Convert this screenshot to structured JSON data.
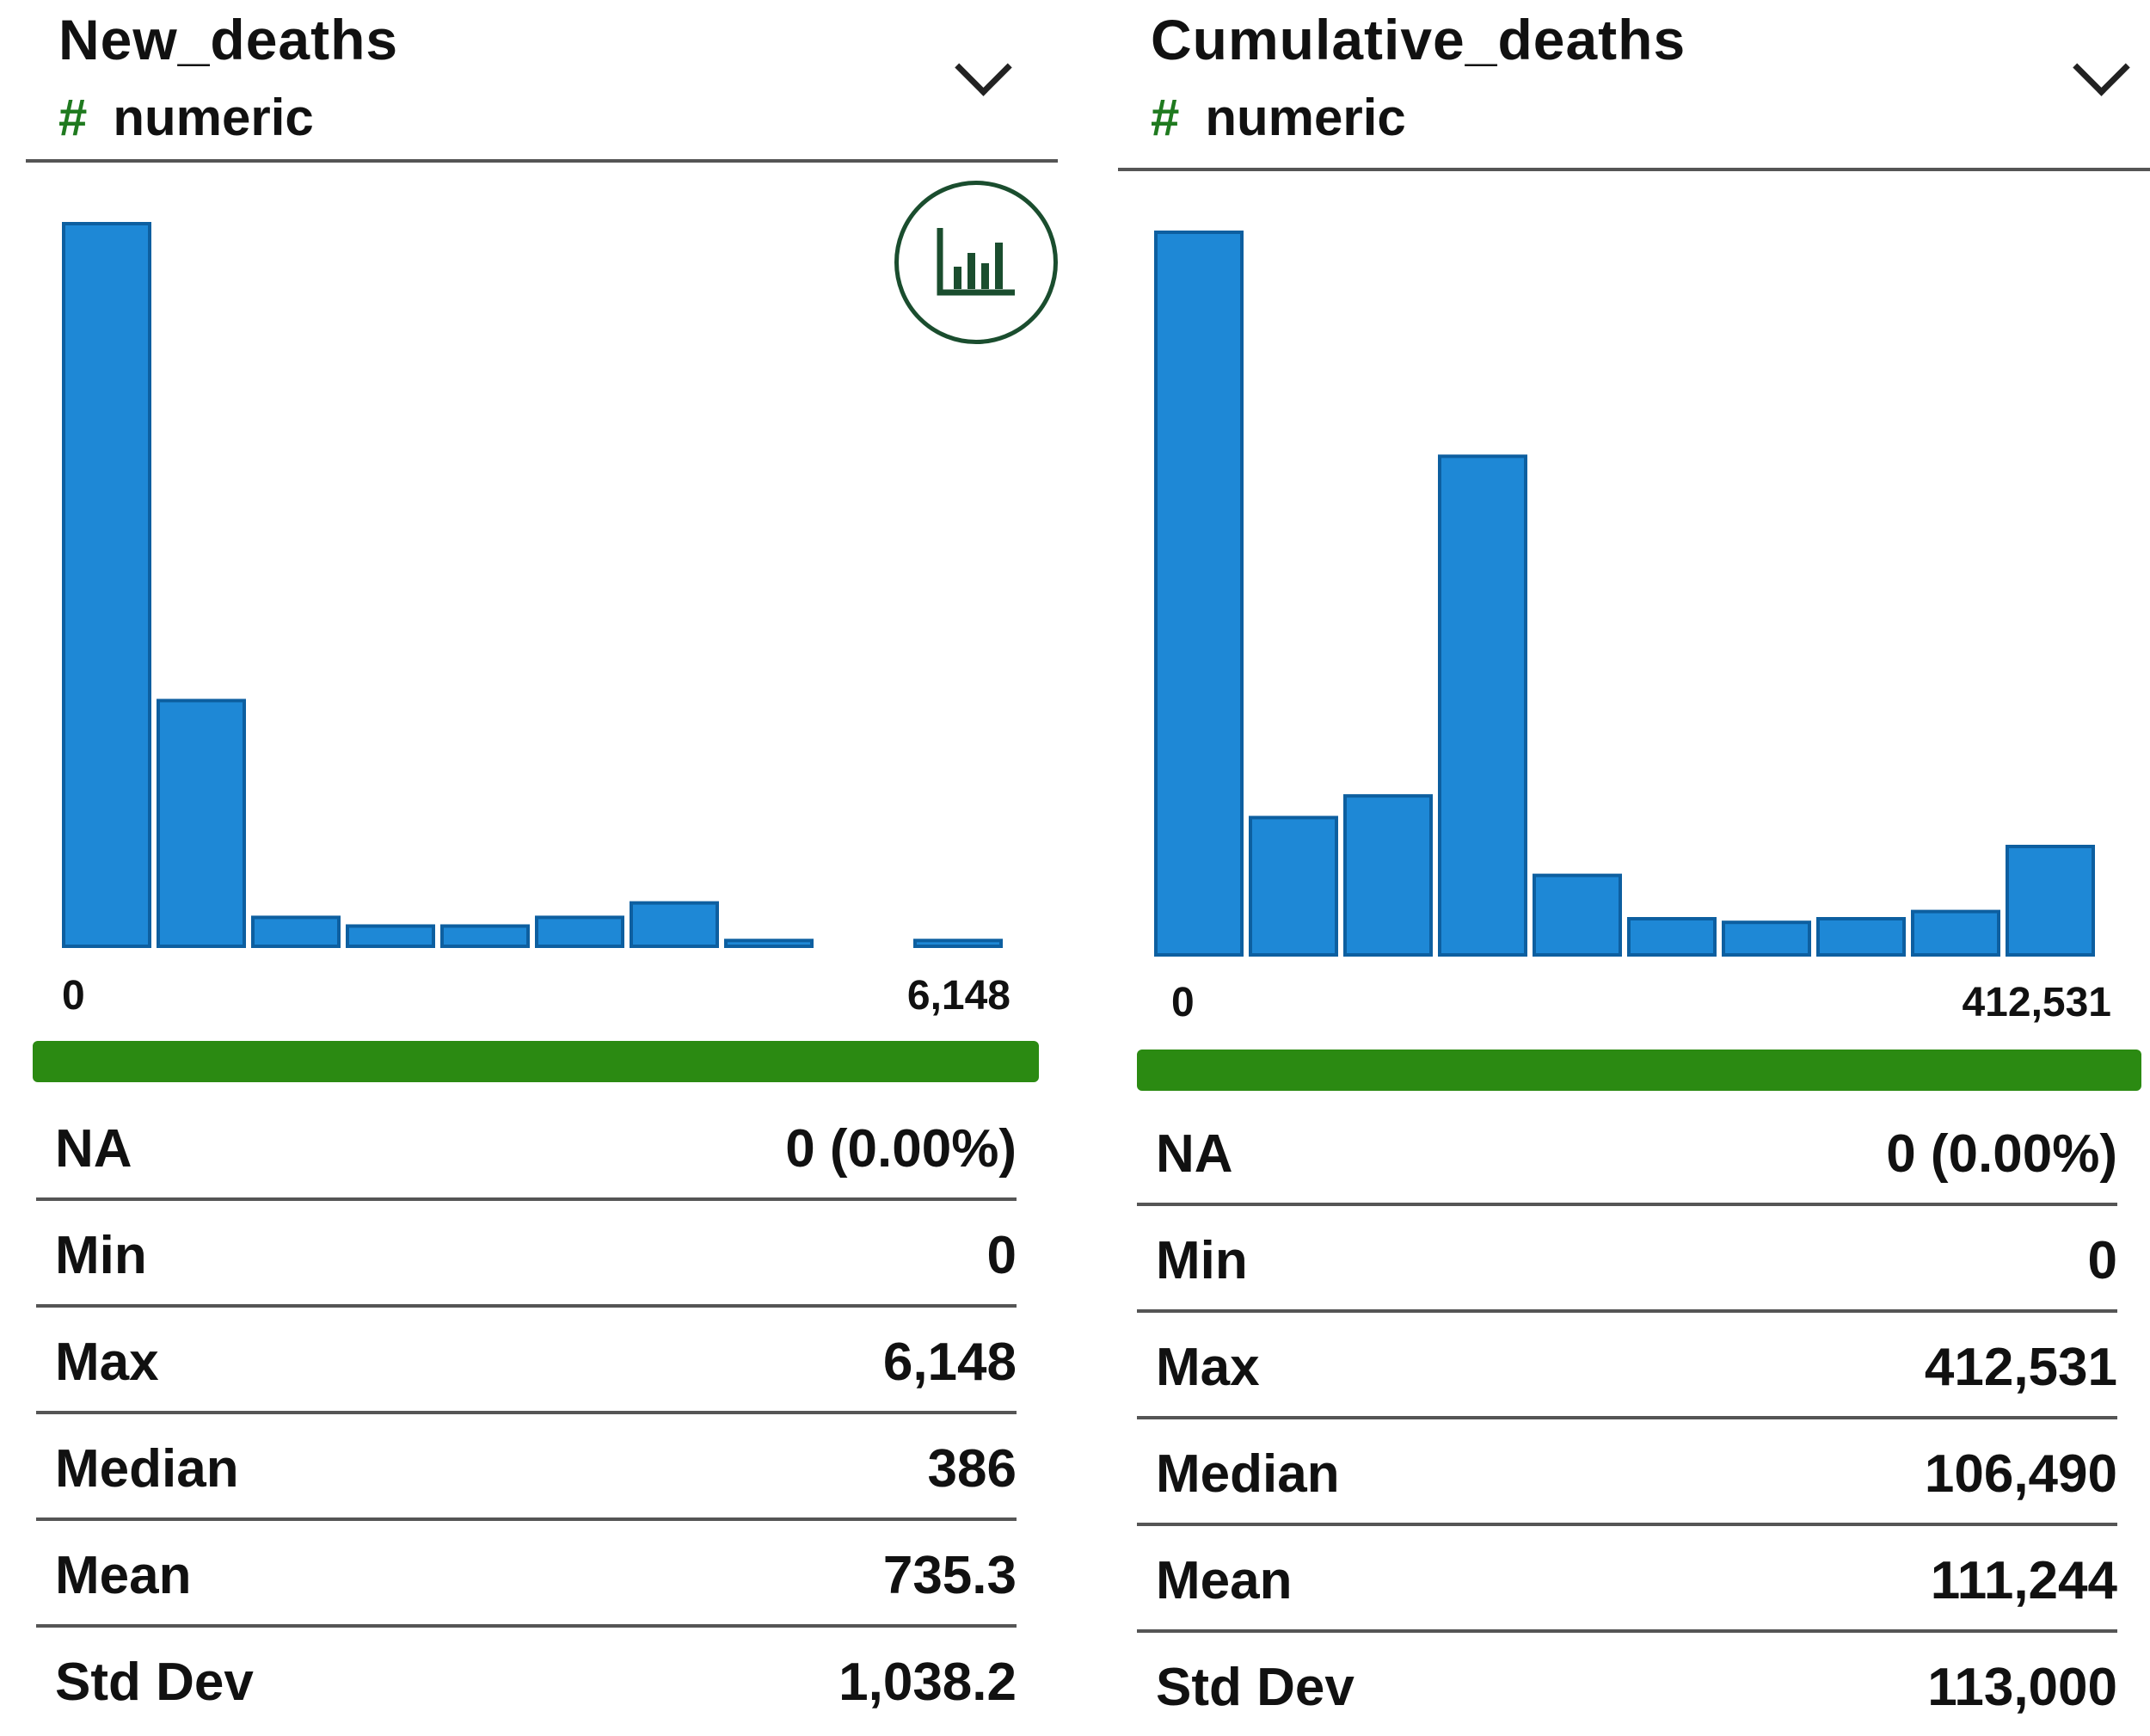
{
  "columns": [
    {
      "name": "New_deaths",
      "type_icon": "#",
      "type_label": "numeric",
      "range_min": "0",
      "range_max": "6,148",
      "bar_color": "#1e88d6",
      "valid_color": "#2b8a12",
      "histogram": [
        1.0,
        0.34,
        0.04,
        0.028,
        0.028,
        0.04,
        0.06,
        0.008,
        0.0,
        0.008
      ],
      "stats": [
        {
          "label": "NA",
          "value": "0 (0.00%)"
        },
        {
          "label": "Min",
          "value": "0"
        },
        {
          "label": "Max",
          "value": "6,148"
        },
        {
          "label": "Median",
          "value": "386"
        },
        {
          "label": "Mean",
          "value": "735.3"
        },
        {
          "label": "Std Dev",
          "value": "1,038.2"
        }
      ]
    },
    {
      "name": "Cumulative_deaths",
      "type_icon": "#",
      "type_label": "numeric",
      "range_min": "0",
      "range_max": "412,531",
      "bar_color": "#1e88d6",
      "valid_color": "#2b8a12",
      "histogram": [
        1.0,
        0.19,
        0.22,
        0.69,
        0.11,
        0.05,
        0.045,
        0.05,
        0.06,
        0.15
      ],
      "stats": [
        {
          "label": "NA",
          "value": "0 (0.00%)"
        },
        {
          "label": "Min",
          "value": "0"
        },
        {
          "label": "Max",
          "value": "412,531"
        },
        {
          "label": "Median",
          "value": "106,490"
        },
        {
          "label": "Mean",
          "value": "111,244"
        },
        {
          "label": "Std Dev",
          "value": "113,000"
        }
      ]
    }
  ],
  "chart_button_icon": "bar-chart-icon"
}
